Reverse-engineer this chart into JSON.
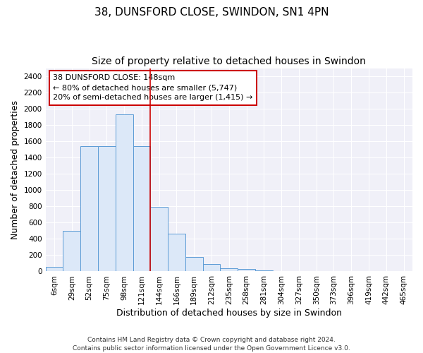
{
  "title_line1": "38, DUNSFORD CLOSE, SWINDON, SN1 4PN",
  "title_line2": "Size of property relative to detached houses in Swindon",
  "xlabel": "Distribution of detached houses by size in Swindon",
  "ylabel": "Number of detached properties",
  "categories": [
    "6sqm",
    "29sqm",
    "52sqm",
    "75sqm",
    "98sqm",
    "121sqm",
    "144sqm",
    "166sqm",
    "189sqm",
    "212sqm",
    "235sqm",
    "258sqm",
    "281sqm",
    "304sqm",
    "327sqm",
    "350sqm",
    "373sqm",
    "396sqm",
    "419sqm",
    "442sqm",
    "465sqm"
  ],
  "values": [
    55,
    500,
    1545,
    1545,
    1930,
    1545,
    790,
    460,
    175,
    90,
    35,
    30,
    15,
    0,
    0,
    0,
    0,
    0,
    0,
    0,
    0
  ],
  "bar_color": "#dce8f8",
  "bar_edge_color": "#5b9bd5",
  "vline_color": "#cc0000",
  "annotation_text": "38 DUNSFORD CLOSE: 148sqm\n← 80% of detached houses are smaller (5,747)\n20% of semi-detached houses are larger (1,415) →",
  "annotation_box_color": "white",
  "annotation_box_edgecolor": "#cc0000",
  "ylim": [
    0,
    2500
  ],
  "yticks": [
    0,
    200,
    400,
    600,
    800,
    1000,
    1200,
    1400,
    1600,
    1800,
    2000,
    2200,
    2400
  ],
  "footnote1": "Contains HM Land Registry data © Crown copyright and database right 2024.",
  "footnote2": "Contains public sector information licensed under the Open Government Licence v3.0.",
  "plot_bg_color": "#f0f0f8",
  "fig_bg_color": "#ffffff",
  "title1_fontsize": 11,
  "title2_fontsize": 10,
  "xlabel_fontsize": 9,
  "ylabel_fontsize": 9,
  "tick_fontsize": 7.5,
  "annot_fontsize": 8,
  "footnote_fontsize": 6.5,
  "vline_index": 6
}
